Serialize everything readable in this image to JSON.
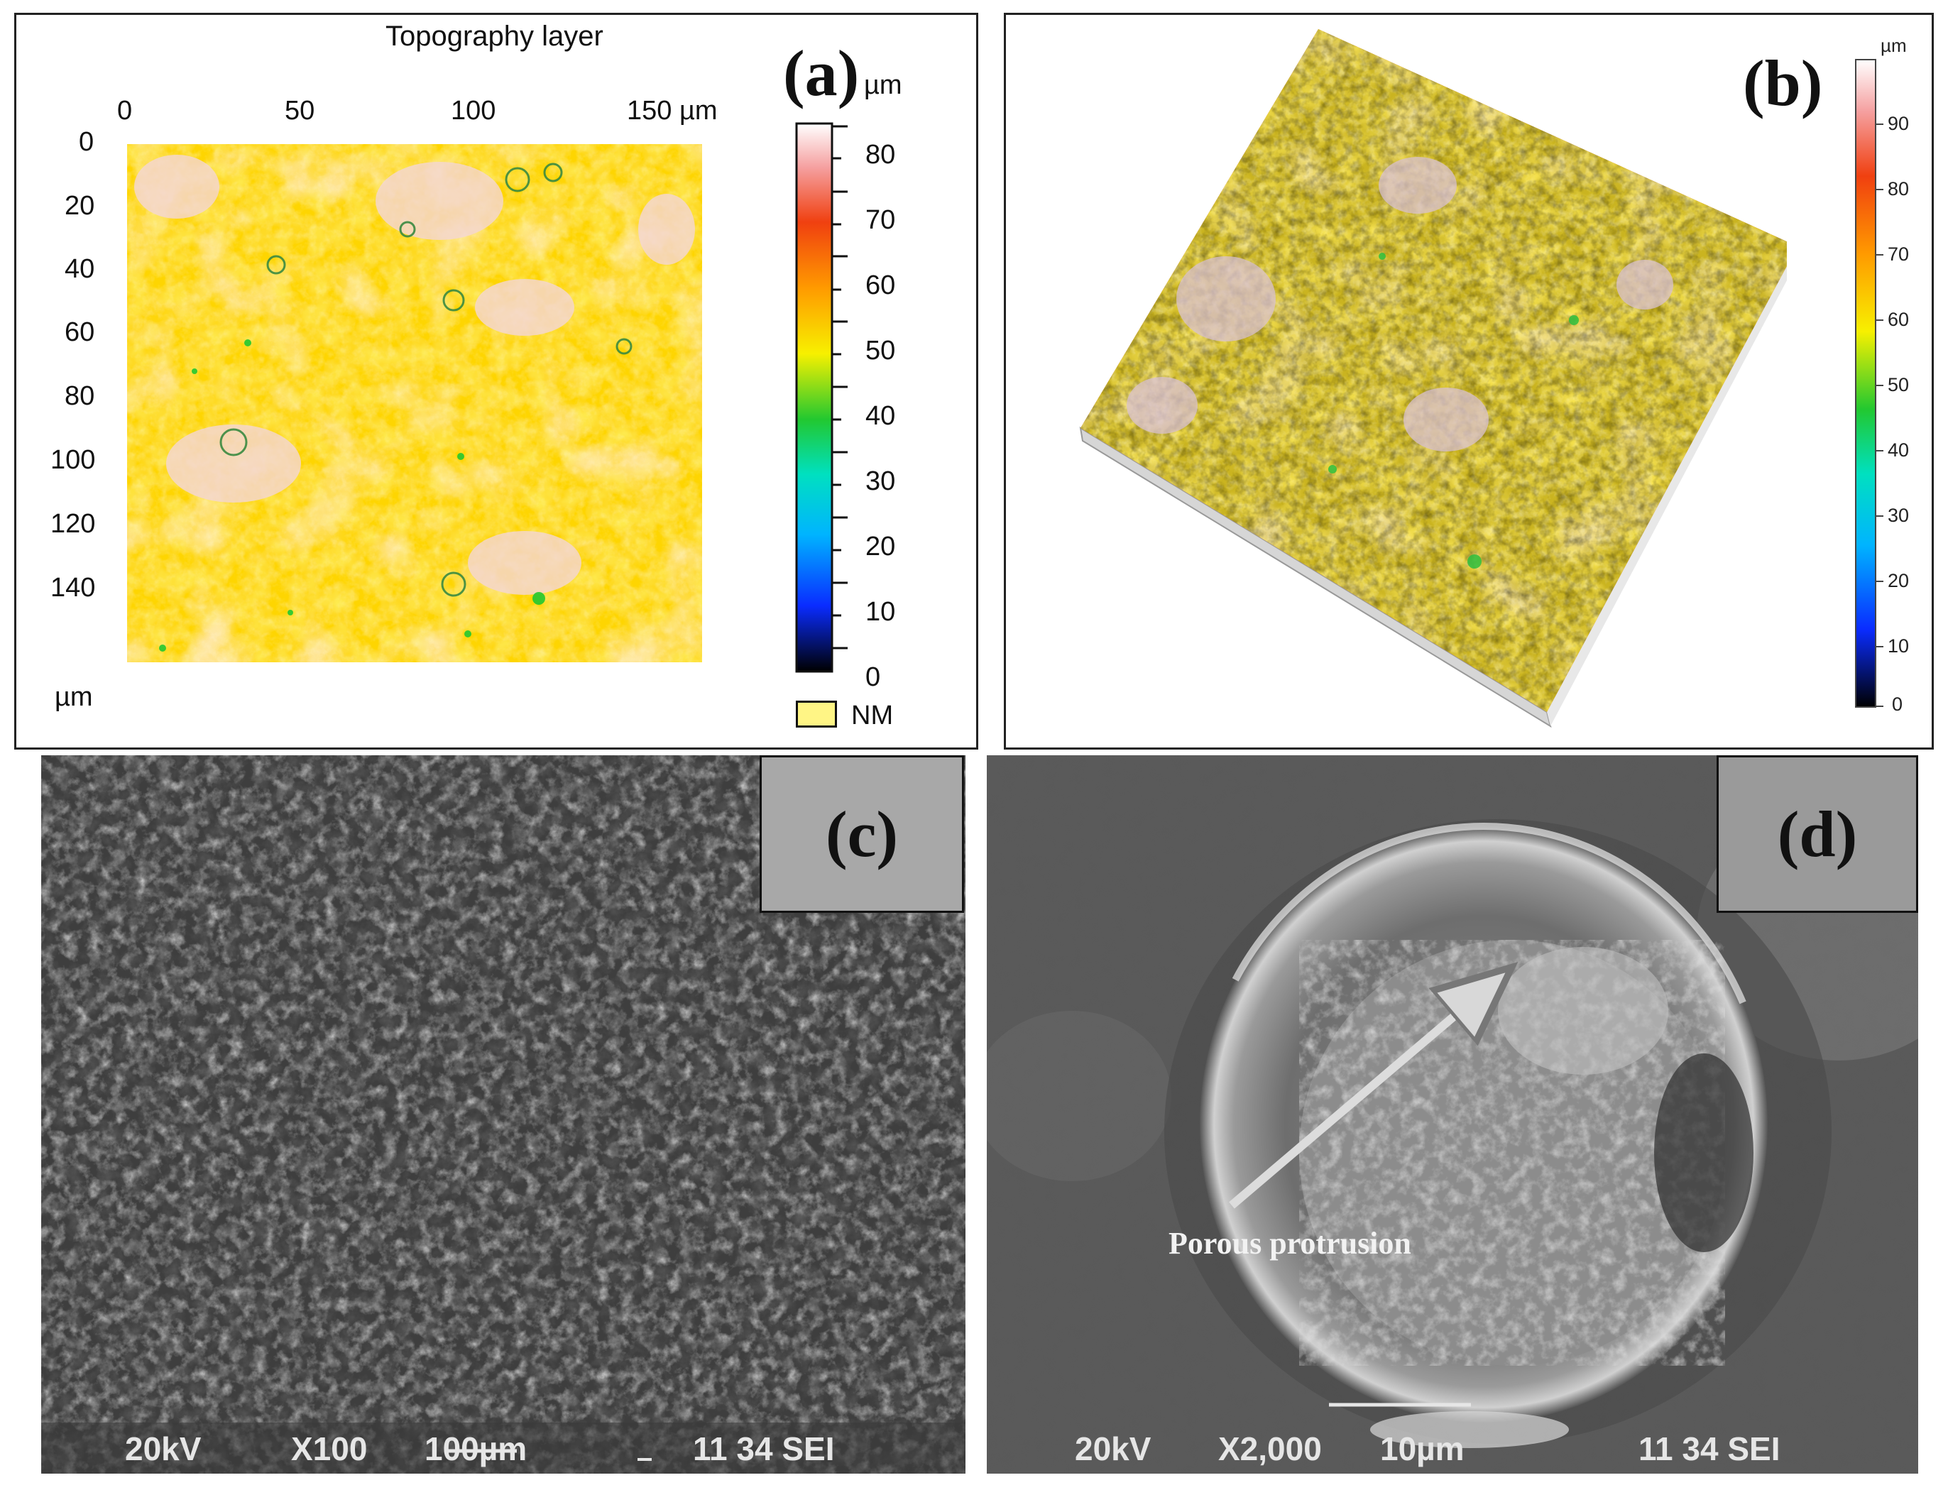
{
  "panel_a": {
    "label": "(a)",
    "title": "Topography layer",
    "x_ticks": [
      "0",
      "50",
      "100",
      "150 µm"
    ],
    "y_ticks": [
      "0",
      "20",
      "40",
      "60",
      "80",
      "100",
      "120",
      "140"
    ],
    "axis_unit": "µm",
    "colorbar_unit": "µm",
    "colorbar_ticks": [
      "80",
      "70",
      "60",
      "50",
      "40",
      "30",
      "20",
      "10",
      "0"
    ],
    "nm_legend": "NM",
    "colors": {
      "low": "#000000",
      "mid_low": "#0a2cff",
      "cyan": "#00e5ff",
      "green": "#22c830",
      "yellow": "#f7f000",
      "orange": "#ff9a00",
      "red": "#f04010",
      "high": "#ffffff"
    }
  },
  "panel_b": {
    "label": "(b)",
    "colorbar_unit": "µm",
    "colorbar_ticks": [
      "90",
      "80",
      "70",
      "60",
      "50",
      "40",
      "30",
      "20",
      "10",
      "0"
    ]
  },
  "panel_c": {
    "label": "(c)",
    "info": {
      "voltage": "20kV",
      "magnification": "X100",
      "scale": "100µm",
      "code": "11 34 SEI"
    }
  },
  "panel_d": {
    "label": "(d)",
    "annotation": "Porous protrusion",
    "info": {
      "voltage": "20kV",
      "magnification": "X2,000",
      "scale": "10µm",
      "code": "11 34 SEI"
    }
  }
}
